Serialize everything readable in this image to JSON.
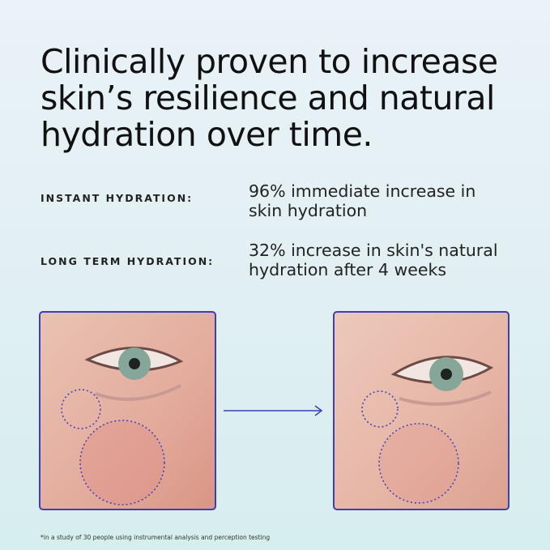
{
  "headline": [
    "Clinically proven to increase",
    "skin’s resilience and natural",
    "hydration over time."
  ],
  "claims": [
    {
      "label": "INSTANT HYDRATION:",
      "text": [
        "96% immediate increase in",
        "skin hydration"
      ]
    },
    {
      "label": "LONG TERM HYDRATION:",
      "text": [
        "32% increase in skin's natural",
        "hydration after 4 weeks"
      ]
    }
  ],
  "footnote": "*in a study of 30 people using instrumental analysis and perception testing"
}
